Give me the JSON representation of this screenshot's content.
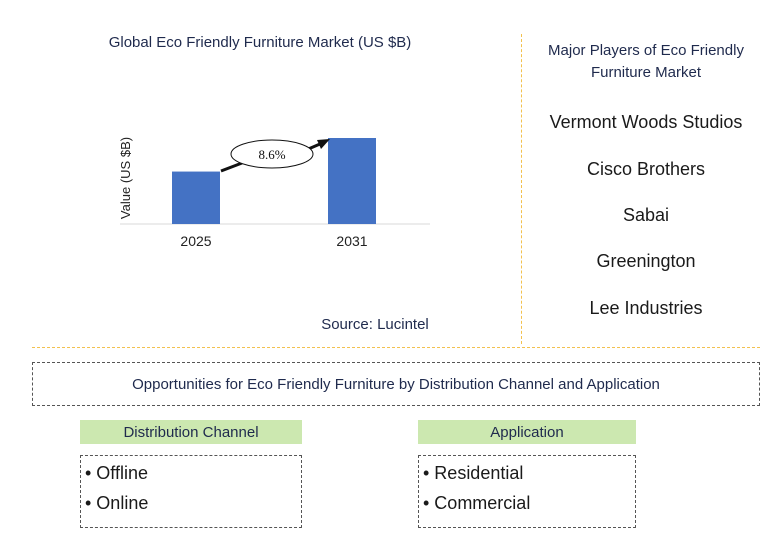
{
  "chart_data": {
    "type": "bar",
    "title": "Global Eco Friendly Furniture Market (US $B)",
    "ylabel": "Value (US $B)",
    "categories": [
      "2025",
      "2031"
    ],
    "values": [
      1.0,
      1.64
    ],
    "cagr_label": "8.6%",
    "colors": {
      "bar": "#4472c4"
    },
    "grid": false
  },
  "source": "Source: Lucintel",
  "players": {
    "title": "Major Players of Eco Friendly Furniture Market",
    "items": [
      "Vermont Woods Studios",
      "Cisco Brothers",
      "Sabai",
      "Greenington",
      "Lee Industries"
    ]
  },
  "opportunities": {
    "title": "Opportunities for Eco Friendly Furniture by Distribution Channel and Application",
    "distribution": {
      "header": "Distribution Channel",
      "items": [
        "• Offline",
        "• Online"
      ]
    },
    "application": {
      "header": "Application",
      "items": [
        "• Residential",
        "• Commercial"
      ]
    },
    "colors": {
      "header_bg": "#cce8b0",
      "divider": "#f2c14e"
    }
  }
}
